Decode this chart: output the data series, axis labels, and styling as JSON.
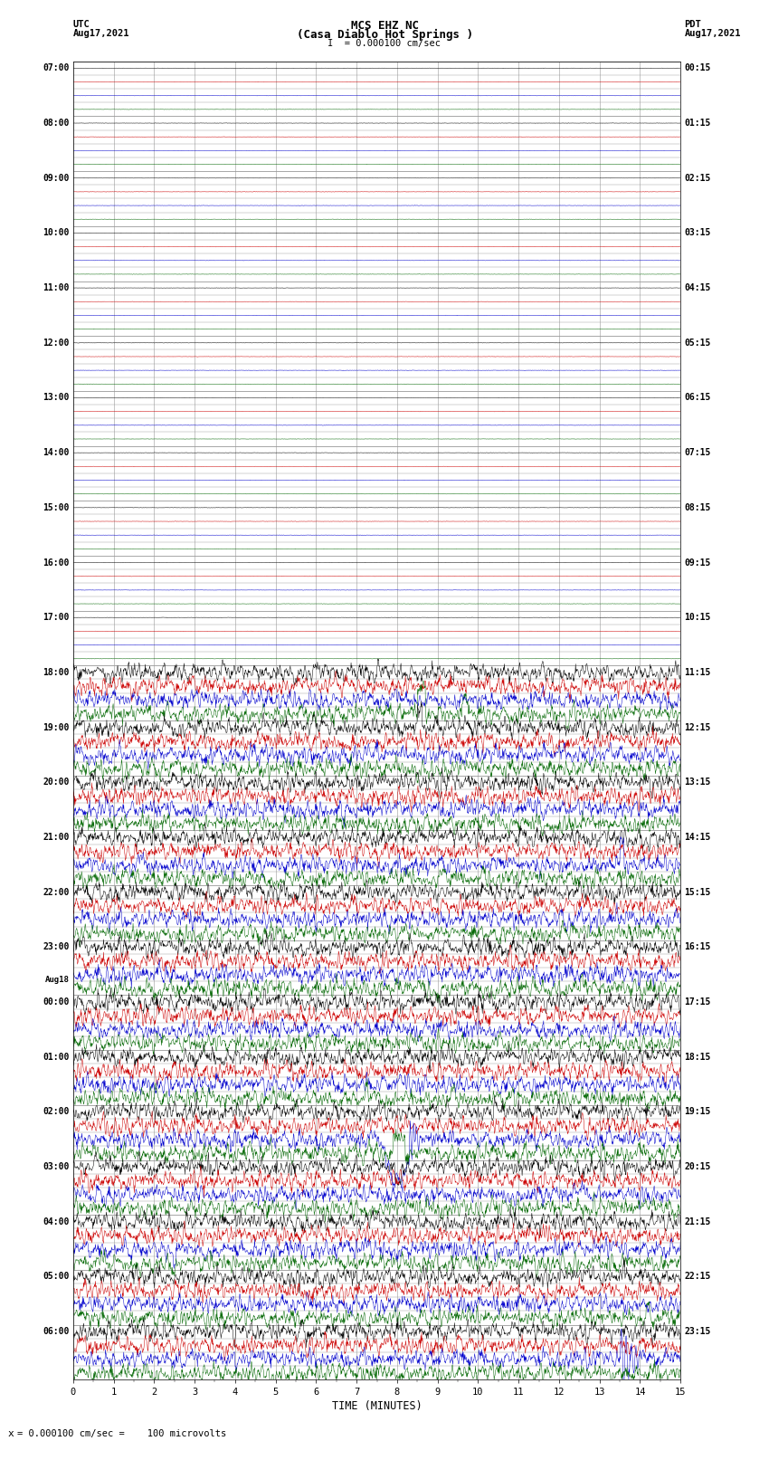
{
  "title_line1": "MCS EHZ NC",
  "title_line2": "(Casa Diablo Hot Springs )",
  "title_line3": "I  = 0.000100 cm/sec",
  "left_header_label": "UTC",
  "left_header_date": "Aug17,2021",
  "right_header_label": "PDT",
  "right_header_date": "Aug17,2021",
  "xlabel": "TIME (MINUTES)",
  "bottom_note": "= 0.000100 cm/sec =    100 microvolts",
  "xmin": 0,
  "xmax": 15,
  "background_color": "#ffffff",
  "colors_cycle": [
    "#000000",
    "#cc0000",
    "#0000cc",
    "#006600"
  ],
  "n_rows": 96,
  "quiet_rows": 44,
  "fig_width": 8.5,
  "fig_height": 16.13,
  "dpi": 100,
  "trace_lw": 0.35,
  "grid_color": "#999999",
  "quiet_amp": 0.006,
  "active_amp": 0.28,
  "left_time_labels": [
    [
      "07:00",
      0
    ],
    [
      "08:00",
      4
    ],
    [
      "09:00",
      8
    ],
    [
      "10:00",
      12
    ],
    [
      "11:00",
      16
    ],
    [
      "12:00",
      20
    ],
    [
      "13:00",
      24
    ],
    [
      "14:00",
      28
    ],
    [
      "15:00",
      32
    ],
    [
      "16:00",
      36
    ],
    [
      "17:00",
      40
    ],
    [
      "18:00",
      44
    ],
    [
      "19:00",
      48
    ],
    [
      "20:00",
      52
    ],
    [
      "21:00",
      56
    ],
    [
      "22:00",
      60
    ],
    [
      "23:00",
      64
    ],
    [
      "Aug18",
      67
    ],
    [
      "00:00",
      68
    ],
    [
      "01:00",
      72
    ],
    [
      "02:00",
      76
    ],
    [
      "03:00",
      80
    ],
    [
      "04:00",
      84
    ],
    [
      "05:00",
      88
    ],
    [
      "06:00",
      92
    ]
  ],
  "right_time_labels": [
    [
      "00:15",
      0
    ],
    [
      "01:15",
      4
    ],
    [
      "02:15",
      8
    ],
    [
      "03:15",
      12
    ],
    [
      "04:15",
      16
    ],
    [
      "05:15",
      20
    ],
    [
      "06:15",
      24
    ],
    [
      "07:15",
      28
    ],
    [
      "08:15",
      32
    ],
    [
      "09:15",
      36
    ],
    [
      "10:15",
      40
    ],
    [
      "11:15",
      44
    ],
    [
      "12:15",
      48
    ],
    [
      "13:15",
      52
    ],
    [
      "14:15",
      56
    ],
    [
      "15:15",
      60
    ],
    [
      "16:15",
      64
    ],
    [
      "17:15",
      68
    ],
    [
      "18:15",
      72
    ],
    [
      "19:15",
      76
    ],
    [
      "20:15",
      80
    ],
    [
      "21:15",
      84
    ],
    [
      "22:15",
      88
    ],
    [
      "23:15",
      92
    ]
  ]
}
